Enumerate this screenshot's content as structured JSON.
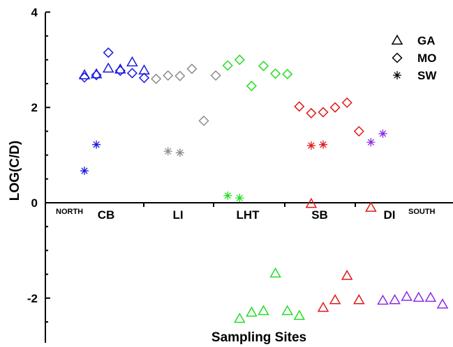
{
  "chart_data": {
    "type": "scatter",
    "xlabel": "Sampling Sites",
    "ylabel": "LOG(C/D)",
    "ylim": [
      -2.6,
      4
    ],
    "yticks": [
      -2,
      0,
      2,
      4
    ],
    "grid": false,
    "legend_position": "top-right",
    "legend": [
      {
        "marker": "triangle",
        "label": "GA"
      },
      {
        "marker": "diamond",
        "label": "MO"
      },
      {
        "marker": "asterisk",
        "label": "SW"
      }
    ],
    "x_annotations": {
      "start": "NORTH",
      "end": "SOUTH"
    },
    "regions": [
      {
        "name": "CB",
        "color": "#1a1adc"
      },
      {
        "name": "LI",
        "color": "#8c8c8c"
      },
      {
        "name": "LHT",
        "color": "#22dd22"
      },
      {
        "name": "SB",
        "color": "#e01818"
      },
      {
        "name": "DI",
        "color": "#8a2be2"
      }
    ],
    "series": [
      {
        "name": "GA",
        "marker": "triangle",
        "points": [
          {
            "x": 1,
            "y": 2.68,
            "region": "CB"
          },
          {
            "x": 2,
            "y": 2.7,
            "region": "CB"
          },
          {
            "x": 3,
            "y": 2.82,
            "region": "CB"
          },
          {
            "x": 4,
            "y": 2.8,
            "region": "CB"
          },
          {
            "x": 5,
            "y": 2.95,
            "region": "CB"
          },
          {
            "x": 6,
            "y": 2.78,
            "region": "CB"
          },
          {
            "x": 14,
            "y": -2.43,
            "region": "LHT"
          },
          {
            "x": 15,
            "y": -2.3,
            "region": "LHT"
          },
          {
            "x": 16,
            "y": -2.27,
            "region": "LHT"
          },
          {
            "x": 17,
            "y": -1.48,
            "region": "LHT"
          },
          {
            "x": 18,
            "y": -2.27,
            "region": "LHT"
          },
          {
            "x": 19,
            "y": -2.37,
            "region": "LHT"
          },
          {
            "x": 20,
            "y": -0.02,
            "region": "SB"
          },
          {
            "x": 21,
            "y": -2.2,
            "region": "SB"
          },
          {
            "x": 22,
            "y": -2.04,
            "region": "SB"
          },
          {
            "x": 23,
            "y": -1.53,
            "region": "SB"
          },
          {
            "x": 24,
            "y": -2.04,
            "region": "SB"
          },
          {
            "x": 25,
            "y": -0.1,
            "region": "SB"
          },
          {
            "x": 26,
            "y": -2.05,
            "region": "DI"
          },
          {
            "x": 27,
            "y": -2.04,
            "region": "DI"
          },
          {
            "x": 28,
            "y": -1.97,
            "region": "DI"
          },
          {
            "x": 29,
            "y": -1.99,
            "region": "DI"
          },
          {
            "x": 30,
            "y": -1.99,
            "region": "DI"
          },
          {
            "x": 31,
            "y": -2.13,
            "region": "DI"
          }
        ]
      },
      {
        "name": "MO",
        "marker": "diamond",
        "points": [
          {
            "x": 1,
            "y": 2.63,
            "region": "CB"
          },
          {
            "x": 2,
            "y": 2.68,
            "region": "CB"
          },
          {
            "x": 3,
            "y": 3.15,
            "region": "CB"
          },
          {
            "x": 4,
            "y": 2.77,
            "region": "CB"
          },
          {
            "x": 5,
            "y": 2.72,
            "region": "CB"
          },
          {
            "x": 6,
            "y": 2.62,
            "region": "CB"
          },
          {
            "x": 7,
            "y": 2.6,
            "region": "LI"
          },
          {
            "x": 8,
            "y": 2.67,
            "region": "LI"
          },
          {
            "x": 9,
            "y": 2.66,
            "region": "LI"
          },
          {
            "x": 10,
            "y": 2.81,
            "region": "LI"
          },
          {
            "x": 11,
            "y": 1.72,
            "region": "LI"
          },
          {
            "x": 12,
            "y": 2.67,
            "region": "LI"
          },
          {
            "x": 13,
            "y": 2.88,
            "region": "LHT"
          },
          {
            "x": 14,
            "y": 3.0,
            "region": "LHT"
          },
          {
            "x": 15,
            "y": 2.45,
            "region": "LHT"
          },
          {
            "x": 16,
            "y": 2.87,
            "region": "LHT"
          },
          {
            "x": 17,
            "y": 2.71,
            "region": "LHT"
          },
          {
            "x": 18,
            "y": 2.7,
            "region": "LHT"
          },
          {
            "x": 19,
            "y": 2.02,
            "region": "SB"
          },
          {
            "x": 20,
            "y": 1.88,
            "region": "SB"
          },
          {
            "x": 21,
            "y": 1.9,
            "region": "SB"
          },
          {
            "x": 22,
            "y": 2.0,
            "region": "SB"
          },
          {
            "x": 23,
            "y": 2.1,
            "region": "SB"
          },
          {
            "x": 24,
            "y": 1.5,
            "region": "SB"
          }
        ]
      },
      {
        "name": "SW",
        "marker": "asterisk",
        "points": [
          {
            "x": 1,
            "y": 0.67,
            "region": "CB"
          },
          {
            "x": 2,
            "y": 1.22,
            "region": "CB"
          },
          {
            "x": 8,
            "y": 1.08,
            "region": "LI"
          },
          {
            "x": 9,
            "y": 1.05,
            "region": "LI"
          },
          {
            "x": 13,
            "y": 0.15,
            "region": "LHT"
          },
          {
            "x": 14,
            "y": 0.1,
            "region": "LHT"
          },
          {
            "x": 20,
            "y": 1.2,
            "region": "SB"
          },
          {
            "x": 21,
            "y": 1.22,
            "region": "SB"
          },
          {
            "x": 25,
            "y": 1.27,
            "region": "DI"
          },
          {
            "x": 26,
            "y": 1.45,
            "region": "DI"
          }
        ]
      }
    ]
  }
}
